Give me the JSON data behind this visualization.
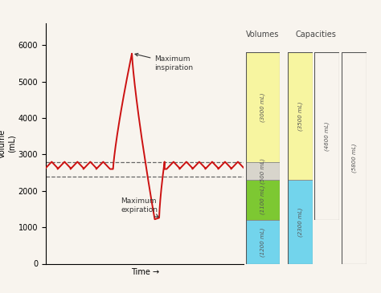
{
  "bg_color": "#f8f4ee",
  "ylabel": "Volume\n(mL)",
  "xlabel": "Time →",
  "ylim": [
    0,
    6600
  ],
  "yticks": [
    0,
    1000,
    2000,
    3000,
    4000,
    5000,
    6000
  ],
  "dashed_line_upper": 2800,
  "dashed_line_lower": 2400,
  "volumes_title": "Volumes",
  "capacities_title": "Capacities",
  "segment_colors": {
    "yellow_light": "#f7f5a0",
    "yellow_mid": "#f0e870",
    "gray": "#d8d5cc",
    "green": "#7dc832",
    "blue": "#72d4ec",
    "white": "#f0f0f0"
  },
  "annotation_max_insp": "Maximum\ninspiration",
  "annotation_max_exp": "Maximum\nexpiration",
  "line_color": "#cc1111",
  "line_width": 1.4
}
